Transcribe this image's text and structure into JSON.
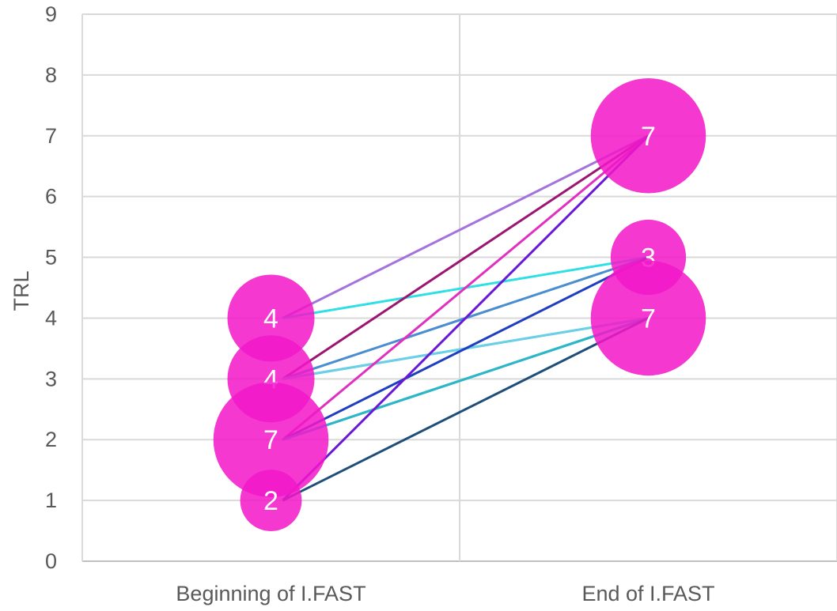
{
  "chart_data": {
    "type": "bubble-slope",
    "title": "",
    "xlabel": "",
    "ylabel": "TRL",
    "ylim": [
      0,
      9
    ],
    "yticks": [
      "0",
      "1",
      "2",
      "3",
      "4",
      "5",
      "6",
      "7",
      "8",
      "9"
    ],
    "categories": [
      "Beginning of I.FAST",
      "End of I.FAST"
    ],
    "grid": true,
    "bubble_color": "#f217c8",
    "bubbles": [
      {
        "category": "Beginning of I.FAST",
        "y": 4,
        "count": 4
      },
      {
        "category": "Beginning of I.FAST",
        "y": 3,
        "count": 4
      },
      {
        "category": "Beginning of I.FAST",
        "y": 2,
        "count": 7
      },
      {
        "category": "Beginning of I.FAST",
        "y": 1,
        "count": 2
      },
      {
        "category": "End of I.FAST",
        "y": 7,
        "count": 7
      },
      {
        "category": "End of I.FAST",
        "y": 5,
        "count": 3
      },
      {
        "category": "End of I.FAST",
        "y": 4,
        "count": 7
      }
    ],
    "bubble_labels": [
      "4",
      "4",
      "7",
      "2",
      "7",
      "3",
      "7"
    ],
    "links": [
      {
        "from": 4,
        "to": 7,
        "color": "#a472dc"
      },
      {
        "from": 4,
        "to": 5,
        "color": "#2ee0e6"
      },
      {
        "from": 3,
        "to": 7,
        "color": "#9b1672"
      },
      {
        "from": 3,
        "to": 5,
        "color": "#4a8ed0"
      },
      {
        "from": 3,
        "to": 4,
        "color": "#35d8e8"
      },
      {
        "from": 3,
        "to": 4,
        "color": "#6ccfe6"
      },
      {
        "from": 2,
        "to": 7,
        "color": "#e030c0"
      },
      {
        "from": 2,
        "to": 5,
        "color": "#1f3fc0"
      },
      {
        "from": 2,
        "to": 4,
        "color": "#1ea8c4"
      },
      {
        "from": 2,
        "to": 4,
        "color": "#2cb6c8"
      },
      {
        "from": 1,
        "to": 7,
        "color": "#6a18d8"
      },
      {
        "from": 1,
        "to": 4,
        "color": "#1f4e7a"
      }
    ]
  }
}
